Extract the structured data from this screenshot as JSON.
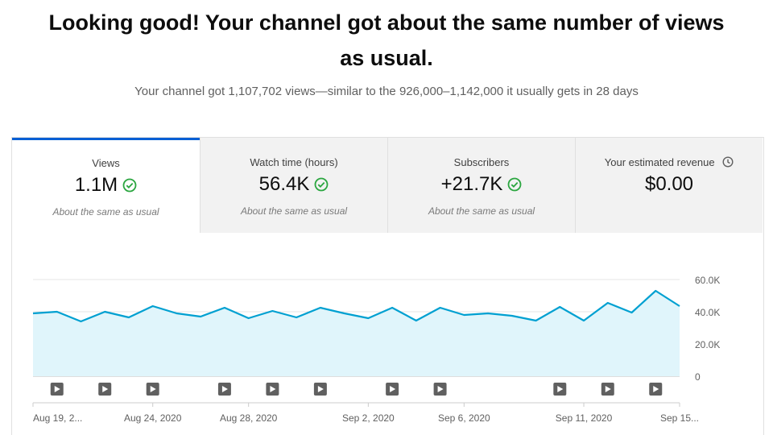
{
  "headline": "Looking good! Your channel got about the same number of views as usual.",
  "subline": "Your channel got 1,107,702 views—similar to the 926,000–1,142,000 it usually gets in 28 days",
  "tabs": [
    {
      "label": "Views",
      "value": "1.1M",
      "note": "About the same as usual",
      "icon": "check-circle-icon",
      "active": true
    },
    {
      "label": "Watch time (hours)",
      "value": "56.4K",
      "note": "About the same as usual",
      "icon": "check-circle-icon",
      "active": false
    },
    {
      "label": "Subscribers",
      "value": "+21.7K",
      "note": "About the same as usual",
      "icon": "check-circle-icon",
      "active": false
    },
    {
      "label": "Your estimated revenue",
      "value": "$0.00",
      "note": "",
      "icon": "clock-icon",
      "active": false
    }
  ],
  "colors": {
    "accent": "#065fd4",
    "line": "#00a0d1",
    "area": "#e0f5fb",
    "check": "#2ba640"
  },
  "chart_data": {
    "type": "area",
    "title": "",
    "xlabel": "",
    "ylabel": "",
    "ylim": [
      0,
      60000
    ],
    "y_ticks": [
      {
        "value": 60000,
        "label": "60.0K"
      },
      {
        "value": 40000,
        "label": "40.0K"
      },
      {
        "value": 20000,
        "label": "20.0K"
      },
      {
        "value": 0,
        "label": "0"
      }
    ],
    "grid": true,
    "x_ticks": [
      {
        "index": 0,
        "label": "Aug 19, 2..."
      },
      {
        "index": 5,
        "label": "Aug 24, 2020"
      },
      {
        "index": 9,
        "label": "Aug 28, 2020"
      },
      {
        "index": 14,
        "label": "Sep 2, 2020"
      },
      {
        "index": 18,
        "label": "Sep 6, 2020"
      },
      {
        "index": 23,
        "label": "Sep 11, 2020"
      },
      {
        "index": 27,
        "label": "Sep 15..."
      }
    ],
    "values": [
      39000,
      40000,
      34000,
      40000,
      36500,
      43500,
      39000,
      37000,
      42500,
      36000,
      40500,
      36500,
      42500,
      39000,
      36000,
      42500,
      34500,
      42500,
      38000,
      39000,
      37500,
      34500,
      43000,
      34500,
      45500,
      39500,
      53000,
      43500
    ],
    "video_markers": [
      1,
      3,
      5,
      8,
      10,
      12,
      15,
      17,
      22,
      24,
      26
    ]
  }
}
